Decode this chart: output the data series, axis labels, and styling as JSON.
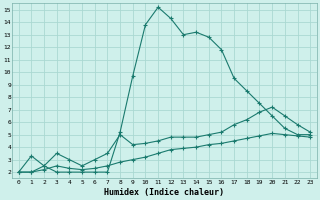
{
  "xlabel": "Humidex (Indice chaleur)",
  "background_color": "#cff0eb",
  "grid_color": "#aad9d2",
  "line_color": "#1a7a6e",
  "xlim": [
    -0.5,
    23.5
  ],
  "ylim": [
    1.5,
    15.5
  ],
  "xticks": [
    0,
    1,
    2,
    3,
    4,
    5,
    6,
    7,
    8,
    9,
    10,
    11,
    12,
    13,
    14,
    15,
    16,
    17,
    18,
    19,
    20,
    21,
    22,
    23
  ],
  "yticks": [
    2,
    3,
    4,
    5,
    6,
    7,
    8,
    9,
    10,
    11,
    12,
    13,
    14,
    15
  ],
  "line1_x": [
    0,
    1,
    2,
    3,
    4,
    5,
    6,
    7,
    8,
    9,
    10,
    11,
    12,
    13,
    14,
    15,
    16,
    17,
    18,
    19,
    20,
    21,
    22,
    23
  ],
  "line1_y": [
    2,
    3.3,
    2.5,
    2.0,
    2.0,
    2.0,
    2.0,
    2.0,
    5.2,
    9.7,
    13.8,
    15.2,
    14.3,
    13.0,
    13.2,
    12.8,
    11.8,
    9.5,
    8.5,
    7.5,
    6.5,
    5.5,
    5.0,
    5.0
  ],
  "line2_x": [
    0,
    1,
    2,
    3,
    4,
    5,
    6,
    7,
    8,
    9,
    10,
    11,
    12,
    13,
    14,
    15,
    16,
    17,
    18,
    19,
    20,
    21,
    22,
    23
  ],
  "line2_y": [
    2,
    2.0,
    2.5,
    3.5,
    3.0,
    2.5,
    3.0,
    3.5,
    5.0,
    4.2,
    4.3,
    4.5,
    4.8,
    4.8,
    4.8,
    5.0,
    5.2,
    5.8,
    6.2,
    6.8,
    7.2,
    6.5,
    5.8,
    5.2
  ],
  "line3_x": [
    0,
    1,
    2,
    3,
    4,
    5,
    6,
    7,
    8,
    9,
    10,
    11,
    12,
    13,
    14,
    15,
    16,
    17,
    18,
    19,
    20,
    21,
    22,
    23
  ],
  "line3_y": [
    2,
    2.0,
    2.2,
    2.5,
    2.3,
    2.2,
    2.3,
    2.5,
    2.8,
    3.0,
    3.2,
    3.5,
    3.8,
    3.9,
    4.0,
    4.2,
    4.3,
    4.5,
    4.7,
    4.9,
    5.1,
    5.0,
    4.9,
    4.8
  ]
}
